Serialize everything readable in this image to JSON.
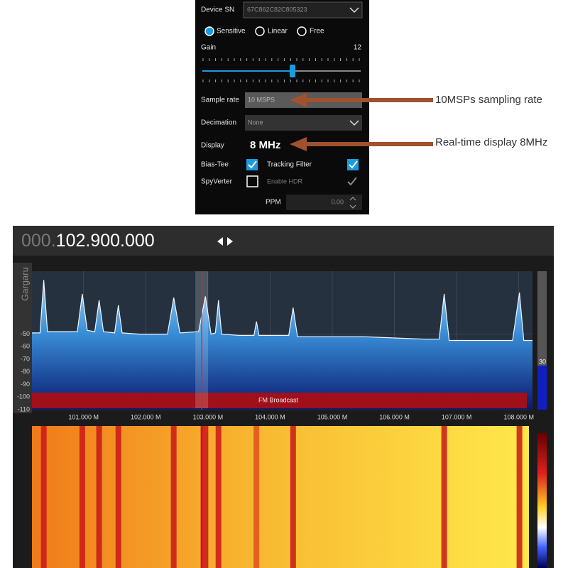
{
  "settings_panel": {
    "device_sn_label": "Device SN",
    "device_sn": "67C862C82C805323",
    "modes": [
      "Sensitive",
      "Linear",
      "Free"
    ],
    "gain_label": "Gain",
    "gain_value": 12,
    "sample_rate_label": "Sample rate",
    "sample_rate": "10 MSPS",
    "decimation_label": "Decimation",
    "decimation": "None",
    "display_label": "Display",
    "display": "8 MHz",
    "bias_tee_label": "Bias-Tee",
    "tracking_filter_label": "Tracking Filter",
    "spyverter_label": "SpyVerter",
    "enable_hdr_label": "Enable HDR",
    "ppm_label": "PPM",
    "ppm": "0.00"
  },
  "annotations": [
    "10MSPs sampling rate",
    "Real-time display 8MHz"
  ],
  "frequency_display": {
    "prefix": "000.",
    "value": "102.900.000"
  },
  "chart_data": {
    "type": "line",
    "y_label": "Gargaru",
    "band_label": "FM Broadcast",
    "level_label": "30",
    "center": 102.9,
    "x": [
      100.17,
      100.3,
      100.36,
      100.42,
      100.6,
      100.9,
      100.98,
      101.06,
      101.18,
      101.25,
      101.32,
      101.5,
      101.56,
      101.62,
      101.9,
      102.35,
      102.45,
      102.55,
      102.85,
      102.96,
      103.05,
      103.12,
      103.17,
      103.22,
      103.5,
      103.74,
      103.78,
      103.82,
      104.3,
      104.37,
      104.44,
      105.0,
      105.5,
      106.0,
      106.5,
      106.72,
      106.8,
      106.88,
      107.3,
      107.9,
      108.01,
      108.08,
      108.22
    ],
    "values": [
      -49,
      -49,
      -7,
      -48,
      -48,
      -48,
      -18,
      -47,
      -48,
      -23,
      -48,
      -49,
      -27,
      -49,
      -50,
      -50,
      -21,
      -49,
      -48,
      -20,
      -50,
      -49,
      -23,
      -50,
      -51,
      -51,
      -40,
      -51,
      -51,
      -29,
      -52,
      -52,
      -52,
      -53,
      -54,
      -54,
      -18,
      -55,
      -55,
      -55,
      -17,
      -55,
      -55
    ],
    "xlim": [
      100.17,
      108.22
    ],
    "ylim": [
      -110,
      0
    ],
    "xticks": [
      {
        "value": 101,
        "label": "101.000 M"
      },
      {
        "value": 102,
        "label": "102.000 M"
      },
      {
        "value": 103,
        "label": "103.000 M"
      },
      {
        "value": 104,
        "label": "104.000 M"
      },
      {
        "value": 105,
        "label": "105.000 M"
      },
      {
        "value": 106,
        "label": "106.000 M"
      },
      {
        "value": 107,
        "label": "107.000 M"
      },
      {
        "value": 108,
        "label": "108.000 M"
      }
    ],
    "yticks": [
      -50,
      -60,
      -70,
      -80,
      -90,
      -100,
      -110
    ],
    "grid": true
  }
}
